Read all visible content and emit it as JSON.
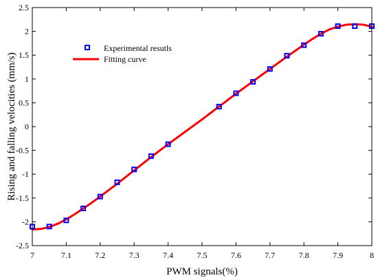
{
  "chart_data": {
    "type": "scatter",
    "title": "",
    "xlabel": "PWM signals(%)",
    "ylabel": "Rising and falling velocities (mm/s)",
    "xlim": [
      7,
      8
    ],
    "ylim": [
      -2.5,
      2.5
    ],
    "xticks": [
      7,
      7.1,
      7.2,
      7.3,
      7.4,
      7.5,
      7.6,
      7.7,
      7.8,
      7.9,
      8
    ],
    "xtick_labels": [
      "7",
      "7.1",
      "7.2",
      "7.3",
      "7.4",
      "7.5",
      "7.6",
      "7.7",
      "7.8",
      "7.9",
      "8"
    ],
    "yticks": [
      2.5,
      2,
      1.5,
      1,
      0.5,
      0,
      -0.5,
      -1,
      -1.5,
      -2,
      -2.5
    ],
    "ytick_labels": [
      "2.5",
      "2",
      "1.5",
      "1",
      "0.5",
      "0",
      "-0.5",
      "-1",
      "-1.5",
      "-2",
      "-2.5"
    ],
    "grid": false,
    "legend_position": "top-left",
    "series": [
      {
        "name": "Experimental resutls",
        "kind": "markers",
        "marker": "square",
        "color": "#0000ff",
        "x": [
          7.0,
          7.05,
          7.1,
          7.15,
          7.2,
          7.25,
          7.3,
          7.35,
          7.4,
          7.55,
          7.6,
          7.65,
          7.7,
          7.75,
          7.8,
          7.85,
          7.9,
          7.95,
          8.0
        ],
        "y": [
          -2.1,
          -2.1,
          -1.97,
          -1.72,
          -1.47,
          -1.17,
          -0.9,
          -0.62,
          -0.37,
          0.42,
          0.7,
          0.94,
          1.21,
          1.49,
          1.71,
          1.95,
          2.11,
          2.11,
          2.11
        ]
      },
      {
        "name": "Fitting curve",
        "kind": "line",
        "color": "#ff0000",
        "x": [
          7.0,
          7.025,
          7.05,
          7.075,
          7.1,
          7.125,
          7.15,
          7.175,
          7.2,
          7.25,
          7.3,
          7.35,
          7.4,
          7.45,
          7.5,
          7.55,
          7.6,
          7.65,
          7.7,
          7.75,
          7.8,
          7.825,
          7.85,
          7.875,
          7.9,
          7.925,
          7.95,
          7.975,
          8.0
        ],
        "y": [
          -2.16,
          -2.15,
          -2.11,
          -2.04,
          -1.95,
          -1.84,
          -1.72,
          -1.6,
          -1.47,
          -1.2,
          -0.92,
          -0.64,
          -0.37,
          -0.11,
          0.15,
          0.42,
          0.69,
          0.95,
          1.21,
          1.47,
          1.72,
          1.84,
          1.95,
          2.04,
          2.1,
          2.14,
          2.15,
          2.14,
          2.1
        ]
      }
    ]
  }
}
